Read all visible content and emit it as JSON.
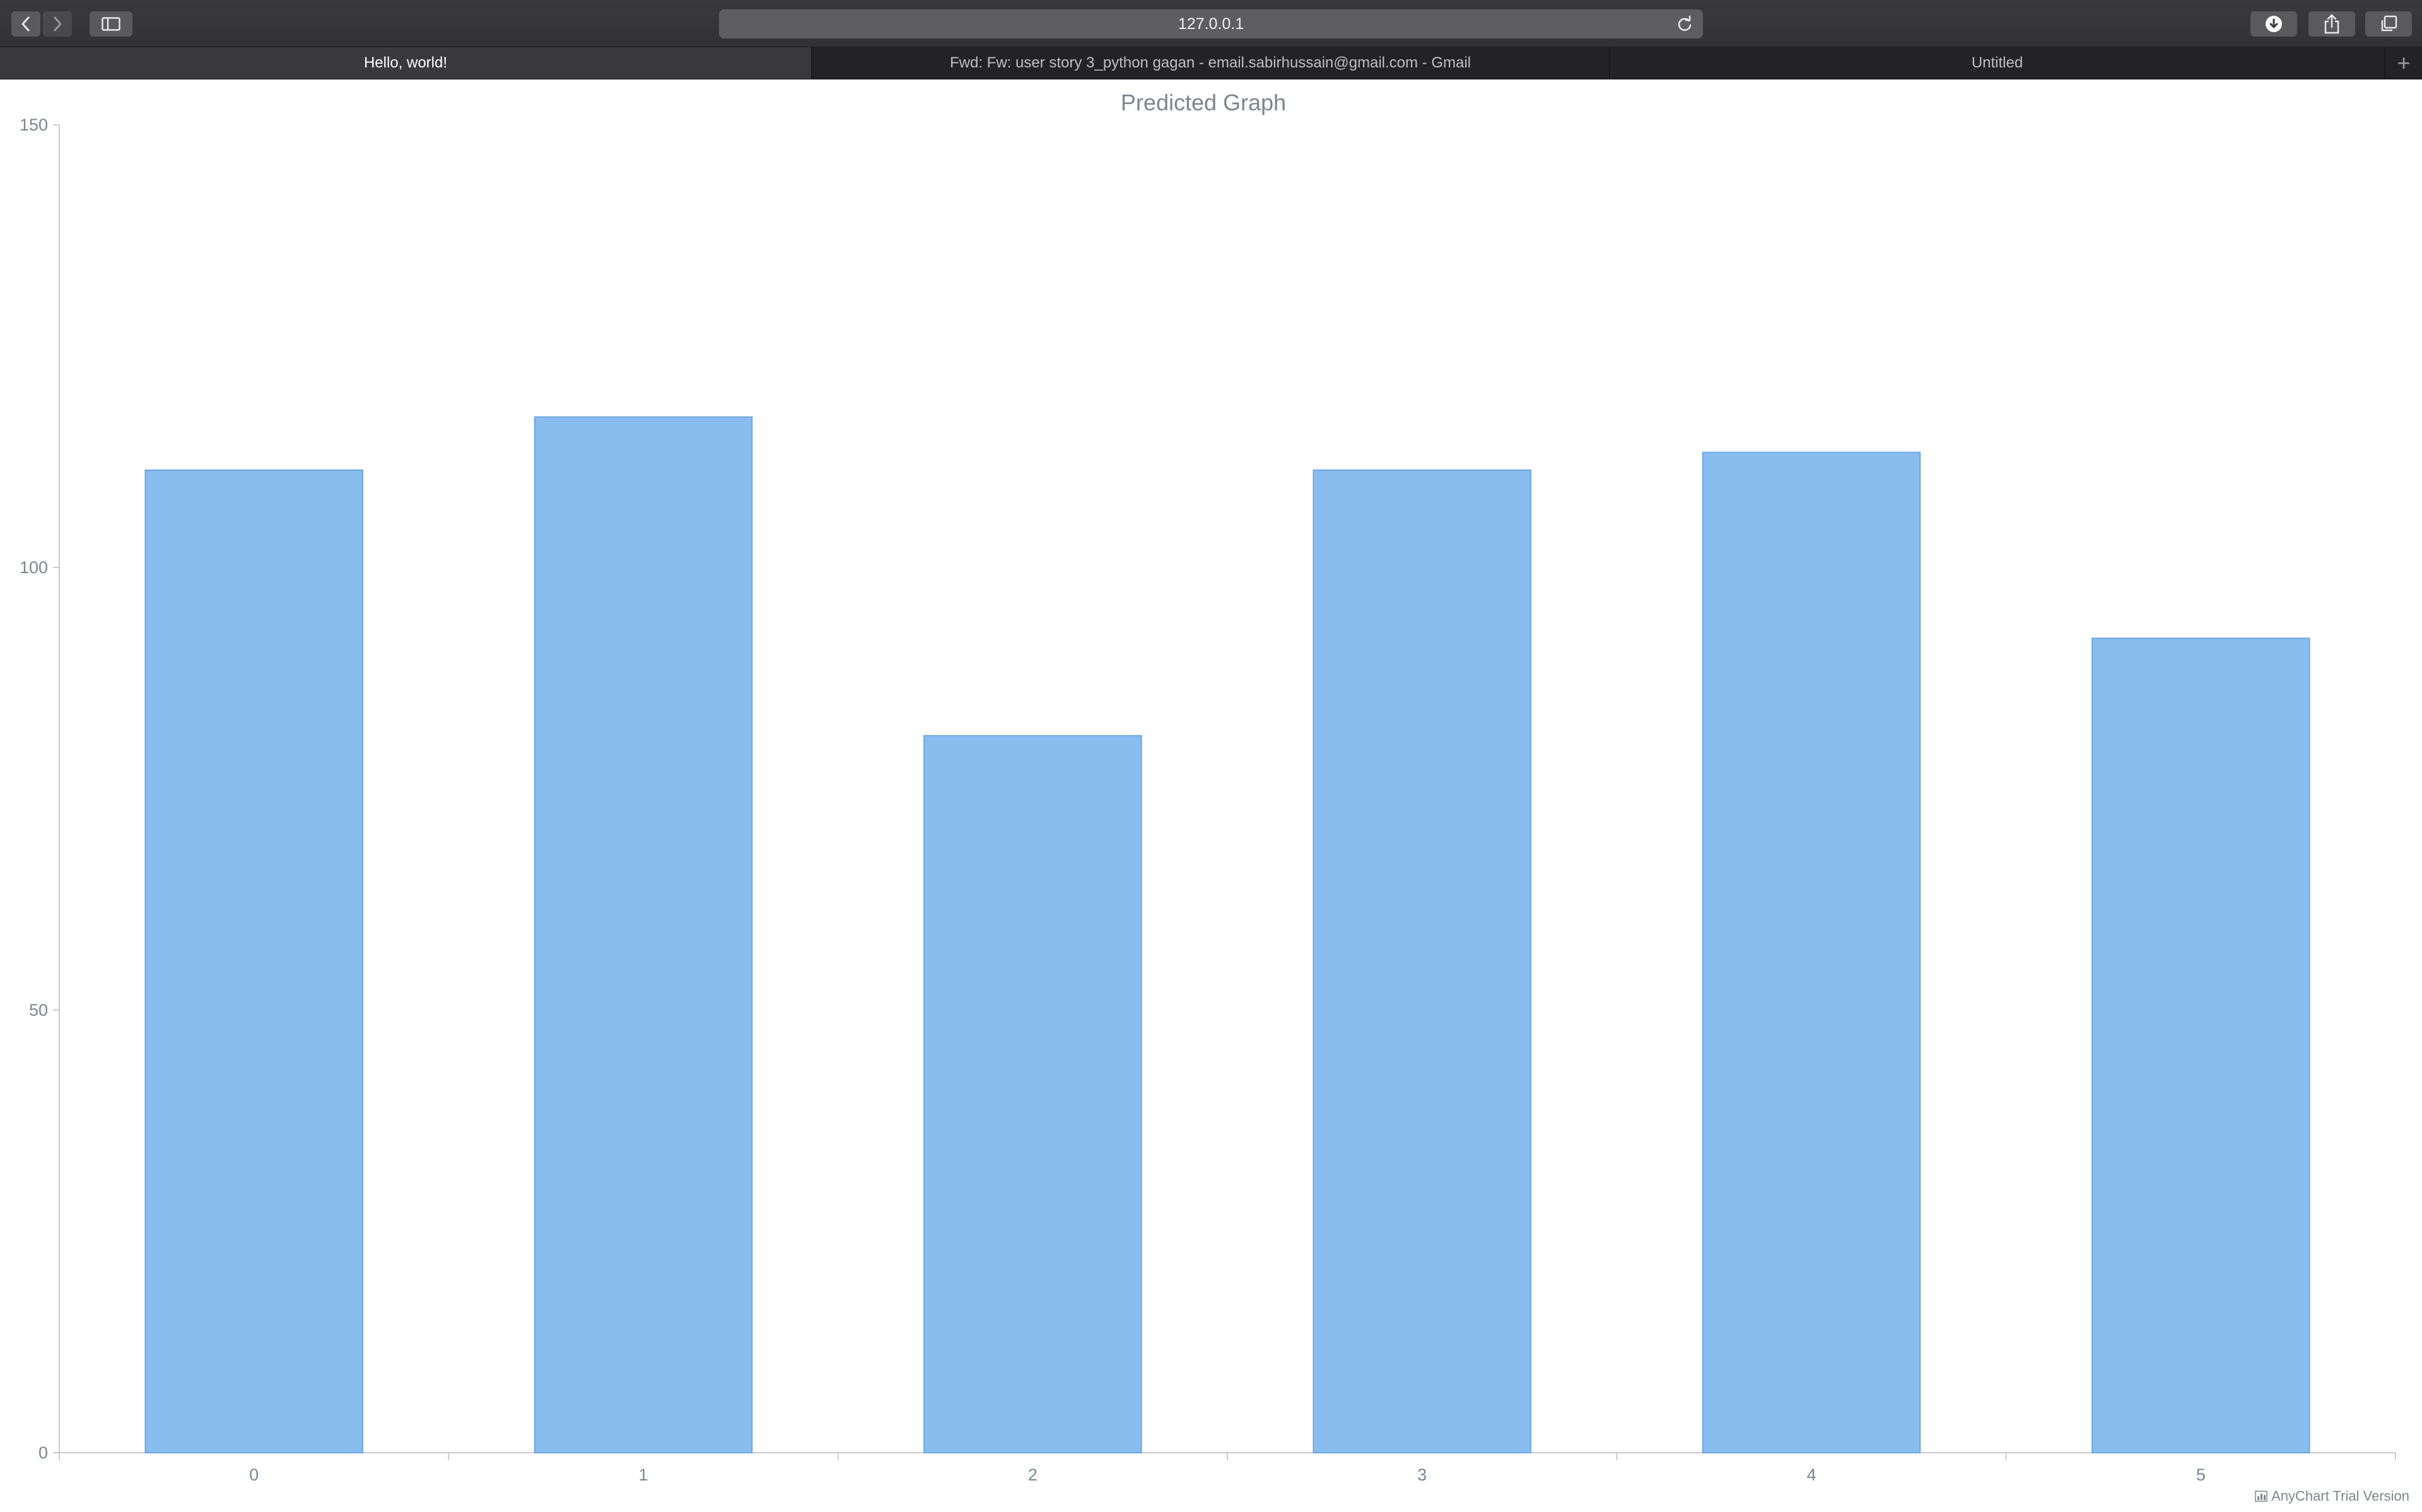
{
  "browser": {
    "address": "127.0.0.1",
    "tabs": [
      {
        "label": "Hello, world!",
        "active": true
      },
      {
        "label": "Fwd: Fw: user story 3_python gagan - email.sabirhussain@gmail.com - Gmail",
        "active": false
      },
      {
        "label": "Untitled",
        "active": false
      }
    ],
    "new_tab_icon": "plus-icon"
  },
  "chart_data": {
    "type": "bar",
    "title": "Predicted Graph",
    "categories": [
      "0",
      "1",
      "2",
      "3",
      "4",
      "5"
    ],
    "values": [
      111,
      117,
      81,
      111,
      113,
      92
    ],
    "ylim": [
      0,
      150
    ],
    "yticks": [
      0,
      50,
      100,
      150
    ],
    "xlabel": "",
    "ylabel": "",
    "grid": false,
    "legend": false,
    "bar_color": "#89bdf0",
    "bar_stroke": "#6fa6e0"
  },
  "credit": "AnyChart Trial Version"
}
